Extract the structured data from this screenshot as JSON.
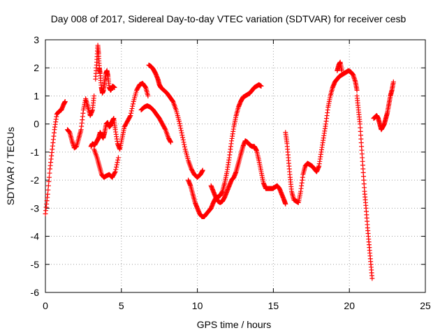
{
  "chart_data": {
    "type": "scatter",
    "title": "Day 008 of 2017, Sidereal Day-to-day VTEC variation (SDTVAR) for receiver cesb",
    "xlabel": "GPS time / hours",
    "ylabel": "SDTVAR / TECUs",
    "xlim": [
      0,
      25
    ],
    "ylim": [
      -6,
      3
    ],
    "xticks": [
      "0",
      "5",
      "10",
      "15",
      "20",
      "25"
    ],
    "yticks": [
      "-6",
      "-5",
      "-4",
      "-3",
      "-2",
      "-1",
      "0",
      "1",
      "2",
      "3"
    ],
    "grid": true,
    "marker": "+",
    "color": "#ff0000",
    "series": [
      {
        "x": [
          0.0,
          0.15,
          0.3,
          0.45,
          0.6,
          0.75,
          0.9,
          1.05,
          1.2,
          1.3
        ],
        "y": [
          -3.2,
          -2.5,
          -1.6,
          -0.9,
          -0.2,
          0.35,
          0.45,
          0.5,
          0.7,
          0.8
        ]
      },
      {
        "x": [
          1.45,
          1.6,
          1.75,
          1.9,
          2.05,
          2.2,
          2.35,
          2.5,
          2.65,
          2.8,
          2.95,
          3.1,
          3.2
        ],
        "y": [
          -0.2,
          -0.3,
          -0.6,
          -0.85,
          -0.8,
          -0.5,
          -0.2,
          0.5,
          0.9,
          0.6,
          0.3,
          0.5,
          1.0
        ]
      },
      {
        "x": [
          3.3,
          3.38,
          3.45,
          3.5,
          3.55,
          3.6,
          3.68,
          3.75,
          3.82,
          3.9,
          3.98,
          4.05,
          4.12,
          4.2,
          4.3,
          4.42,
          4.55
        ],
        "y": [
          1.6,
          2.2,
          2.8,
          2.5,
          2.0,
          1.8,
          1.3,
          1.1,
          1.2,
          1.5,
          1.8,
          1.9,
          1.7,
          1.3,
          1.2,
          1.35,
          1.3
        ]
      },
      {
        "x": [
          3.0,
          3.1,
          3.25,
          3.4,
          3.5,
          3.6,
          3.7,
          3.8,
          3.9,
          4.0,
          4.1,
          4.2,
          4.3,
          4.4,
          4.5,
          4.6,
          4.75,
          4.9,
          5.05,
          5.2,
          5.4,
          5.6,
          5.8,
          6.0,
          6.2,
          6.4,
          6.6,
          6.75
        ],
        "y": [
          -0.8,
          -0.7,
          -0.75,
          -0.6,
          -0.5,
          -0.3,
          -0.4,
          -0.5,
          -0.3,
          0.0,
          0.05,
          -0.1,
          -0.05,
          0.1,
          0.2,
          -0.2,
          -0.7,
          -0.9,
          -0.5,
          -0.1,
          0.1,
          0.3,
          0.8,
          1.2,
          1.4,
          1.45,
          1.3,
          1.0
        ]
      },
      {
        "x": [
          3.2,
          3.4,
          3.55,
          3.7,
          3.85,
          4.0,
          4.2,
          4.4,
          4.6,
          4.8
        ],
        "y": [
          -0.9,
          -1.2,
          -1.5,
          -1.8,
          -1.9,
          -1.85,
          -1.8,
          -1.9,
          -1.7,
          -1.2
        ]
      },
      {
        "x": [
          6.3,
          6.5,
          6.7,
          6.9,
          7.1,
          7.3,
          7.5,
          7.7,
          7.9,
          8.1,
          8.25
        ],
        "y": [
          0.5,
          0.6,
          0.65,
          0.6,
          0.5,
          0.35,
          0.2,
          0.0,
          -0.2,
          -0.5,
          -0.65
        ]
      },
      {
        "x": [
          6.8,
          6.95,
          7.1,
          7.25,
          7.4,
          7.5,
          7.6,
          7.8,
          8.0,
          8.2,
          8.4,
          8.6,
          8.8,
          9.0,
          9.2,
          9.4,
          9.6,
          9.8,
          10.0,
          10.2,
          10.35
        ],
        "y": [
          2.1,
          2.05,
          1.95,
          1.8,
          1.6,
          1.4,
          1.3,
          1.2,
          1.1,
          0.95,
          0.8,
          0.5,
          0.1,
          -0.4,
          -0.9,
          -1.3,
          -1.6,
          -1.8,
          -1.9,
          -1.8,
          -1.65
        ]
      },
      {
        "x": [
          9.4,
          9.55,
          9.7,
          9.85,
          10.0,
          10.15,
          10.3,
          10.45,
          10.6,
          10.75,
          10.9,
          11.05,
          11.2,
          11.35,
          11.5,
          11.65,
          11.8,
          11.95,
          12.1,
          12.25,
          12.4,
          12.55,
          12.7,
          12.85,
          13.0,
          13.15,
          13.3,
          13.45,
          13.6,
          13.75,
          13.9,
          14.05,
          14.2
        ],
        "y": [
          -2.0,
          -2.2,
          -2.5,
          -2.8,
          -3.0,
          -3.2,
          -3.3,
          -3.3,
          -3.2,
          -3.1,
          -3.0,
          -2.8,
          -2.65,
          -2.6,
          -2.55,
          -2.4,
          -2.1,
          -1.7,
          -1.2,
          -0.6,
          -0.1,
          0.3,
          0.6,
          0.8,
          0.95,
          1.0,
          1.05,
          1.1,
          1.2,
          1.3,
          1.35,
          1.4,
          1.35
        ]
      },
      {
        "x": [
          10.9,
          11.05,
          11.2,
          11.35,
          11.5,
          11.65,
          11.8,
          11.95,
          12.1,
          12.25,
          12.4,
          12.55,
          12.7,
          12.85,
          13.0,
          13.15,
          13.3,
          13.45,
          13.6,
          13.75,
          13.9,
          14.05,
          14.2,
          14.35,
          14.5,
          14.65,
          14.8,
          14.95,
          15.1,
          15.25,
          15.4,
          15.55,
          15.7,
          15.8
        ],
        "y": [
          -2.2,
          -2.4,
          -2.6,
          -2.75,
          -2.8,
          -2.75,
          -2.6,
          -2.4,
          -2.2,
          -2.0,
          -1.9,
          -1.7,
          -1.4,
          -1.1,
          -0.8,
          -0.6,
          -0.65,
          -0.75,
          -0.8,
          -0.8,
          -0.95,
          -1.3,
          -1.7,
          -2.1,
          -2.3,
          -2.3,
          -2.3,
          -2.3,
          -2.25,
          -2.2,
          -2.3,
          -2.5,
          -2.7,
          -2.85
        ]
      },
      {
        "x": [
          15.8,
          15.9,
          16.0,
          16.1,
          16.2,
          16.35,
          16.5,
          16.65,
          16.8,
          16.95,
          17.1,
          17.25,
          17.4,
          17.55,
          17.7,
          17.85,
          18.0,
          18.15,
          18.3,
          18.45,
          18.6,
          18.75,
          18.9,
          19.05,
          19.2,
          19.35,
          19.5,
          19.65,
          19.8,
          19.95,
          20.1,
          20.25,
          20.4,
          20.5
        ],
        "y": [
          -0.3,
          -0.7,
          -1.3,
          -1.9,
          -2.4,
          -2.7,
          -2.75,
          -2.8,
          -2.4,
          -1.8,
          -1.5,
          -1.4,
          -1.45,
          -1.5,
          -1.6,
          -1.7,
          -1.5,
          -1.0,
          -0.5,
          0.0,
          0.6,
          1.0,
          1.3,
          1.5,
          1.6,
          1.7,
          1.75,
          1.8,
          1.85,
          1.9,
          1.85,
          1.75,
          1.5,
          1.2
        ]
      },
      {
        "x": [
          19.2,
          19.3,
          19.4,
          19.5
        ],
        "y": [
          1.9,
          2.1,
          2.2,
          1.9
        ]
      },
      {
        "x": [
          20.5,
          20.6,
          20.7,
          20.8,
          20.9,
          21.0,
          21.1,
          21.2,
          21.3,
          21.4,
          21.5
        ],
        "y": [
          1.0,
          0.5,
          0.0,
          -0.8,
          -1.6,
          -2.4,
          -3.0,
          -3.7,
          -4.3,
          -4.9,
          -5.5
        ]
      },
      {
        "x": [
          21.6,
          21.7,
          21.8,
          21.9,
          22.0,
          22.1,
          22.2,
          22.3,
          22.4,
          22.5,
          22.6,
          22.7,
          22.8,
          22.9
        ],
        "y": [
          0.2,
          0.25,
          0.3,
          0.2,
          0.0,
          -0.2,
          -0.1,
          0.0,
          0.2,
          0.4,
          0.7,
          1.0,
          1.2,
          1.5
        ]
      }
    ]
  }
}
